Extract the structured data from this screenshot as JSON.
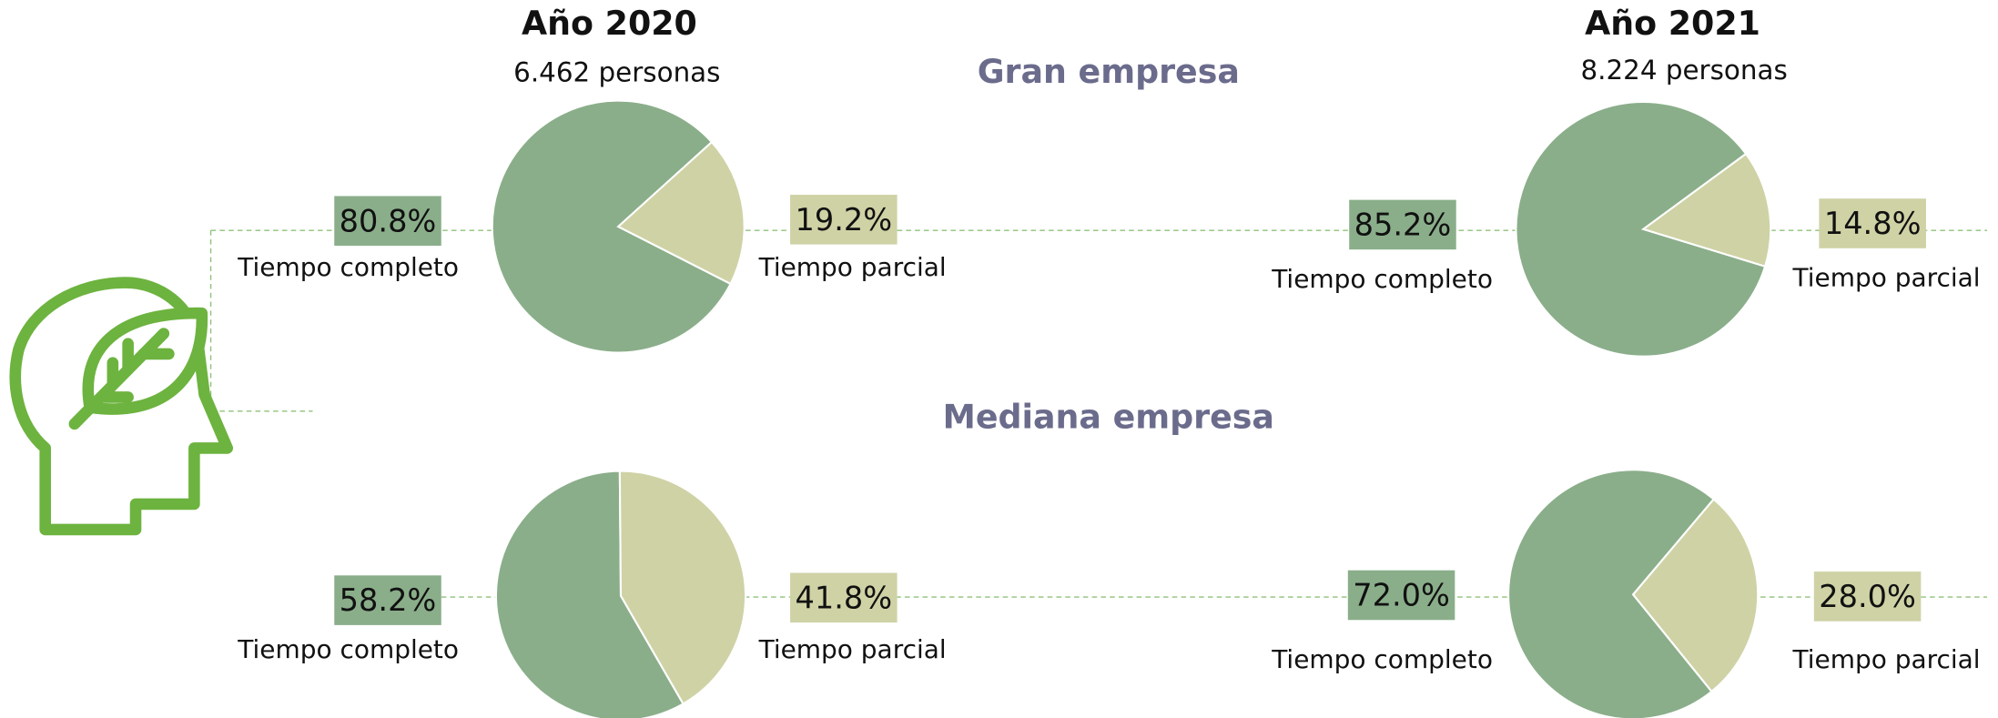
{
  "columns": [
    {
      "title": "Año 2020",
      "subtitle": "6.462 personas"
    },
    {
      "title": "Año 2021",
      "subtitle": "8.224 personas"
    }
  ],
  "rows": [
    "Gran empresa",
    "Mediana empresa"
  ],
  "chart_data": [
    {
      "type": "pie",
      "categories": [
        "Tiempo completo",
        "Tiempo parcial"
      ],
      "values": [
        80.8,
        19.2
      ],
      "value_labels": [
        "80.8%",
        "19.2%"
      ],
      "colors": [
        "#8aae8a",
        "#cfd2a5"
      ]
    },
    {
      "type": "pie",
      "categories": [
        "Tiempo completo",
        "Tiempo parcial"
      ],
      "values": [
        85.2,
        14.8
      ],
      "value_labels": [
        "85.2%",
        "14.8%"
      ],
      "colors": [
        "#8aae8a",
        "#cfd2a5"
      ]
    },
    {
      "type": "pie",
      "categories": [
        "Tiempo completo",
        "Tiempo parcial"
      ],
      "values": [
        58.2,
        41.8
      ],
      "value_labels": [
        "58.2%",
        "41.8%"
      ],
      "colors": [
        "#8aae8a",
        "#cfd2a5"
      ]
    },
    {
      "type": "pie",
      "categories": [
        "Tiempo completo",
        "Tiempo parcial"
      ],
      "values": [
        72.0,
        28.0
      ],
      "value_labels": [
        "72.0%",
        "28.0%"
      ],
      "colors": [
        "#8aae8a",
        "#cfd2a5"
      ]
    }
  ]
}
